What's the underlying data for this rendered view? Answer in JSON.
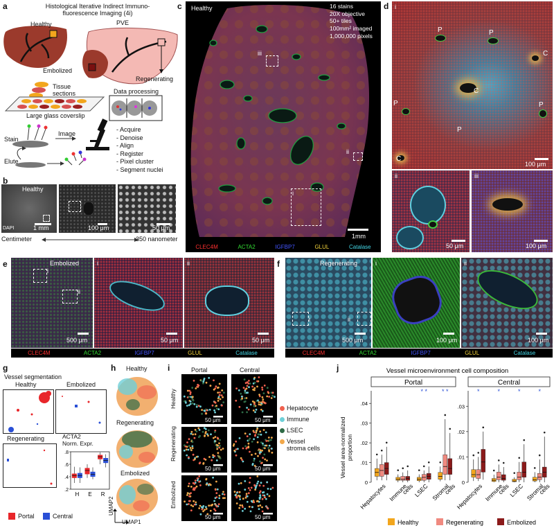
{
  "panels": {
    "a": "a",
    "b": "b",
    "c": "c",
    "d": "d",
    "e": "e",
    "f": "f",
    "g": "g",
    "h": "h",
    "i": "i",
    "j": "j"
  },
  "a": {
    "title_line1": "Histological Iterative Indirect Immuno-",
    "title_line2": "fluorescence Imaging (4i)",
    "healthy": "Healthy",
    "pve": "PVE",
    "embolized": "Embolized",
    "regenerating": "Regenerating",
    "tissue_sections_line1": "Tissue",
    "tissue_sections_line2": "sections",
    "coverslip": "Large glass coverslip",
    "data_processing": "Data processing",
    "stain": "Stain",
    "image": "Image",
    "elute": "Elute",
    "steps": [
      "- Acquire",
      "- Denoise",
      "- Align",
      "- Register",
      "- Pixel cluster",
      "- Segment nuclei"
    ]
  },
  "b": {
    "healthy": "Healthy",
    "dapi": "DAPI",
    "scale1": "1 mm",
    "scale2": "100 μm",
    "scale3": "50 μm",
    "left_end": "Centimeter",
    "right_end": "350 nanometer"
  },
  "c": {
    "healthy": "Healthy",
    "info": [
      "16 stains",
      "20X objective",
      "50+ tiles",
      "100mm² imaged",
      "1,000,000 pixels"
    ],
    "roi_i": "i",
    "roi_ii": "ii",
    "roi_iii": "iii",
    "scale": "1mm"
  },
  "stains": [
    {
      "name": "CLEC4M",
      "color": "#ff3030"
    },
    {
      "name": "ACTA2",
      "color": "#33dd33"
    },
    {
      "name": "IGFBP7",
      "color": "#4455ff"
    },
    {
      "name": "GLUL",
      "color": "#f2d23a"
    },
    {
      "name": "Catalase",
      "color": "#44d8e8"
    }
  ],
  "d": {
    "sub_i": "i",
    "sub_ii": "ii",
    "sub_iii": "iii",
    "markers": [
      "P",
      "P",
      "P",
      "P",
      "P",
      "C",
      "C",
      "C"
    ],
    "scale_i": "100 μm",
    "scale_ii": "50 μm",
    "scale_iii": "100 μm"
  },
  "e": {
    "title": "Embolized",
    "sub_i": "i",
    "sub_ii": "ii",
    "scale_main": "500 μm",
    "scale_i": "50 μm",
    "scale_ii": "50 μm"
  },
  "f": {
    "title": "Regenerating",
    "sub_i": "i",
    "sub_ii": "ii",
    "scale_main": "500 μm",
    "scale_i": "100 μm",
    "scale_ii": "100 μm"
  },
  "g": {
    "title": "Vessel segmentation",
    "healthy": "Healthy",
    "embolized": "Embolized",
    "regenerating": "Regenerating",
    "box_title_line1": "ACTA2",
    "box_title_line2": "Norm. Expr.",
    "yticks": [
      ".2",
      ".4",
      ".6",
      ".8"
    ],
    "xcats": [
      "H",
      "E",
      "R"
    ],
    "legend_portal": "Portal",
    "legend_central": "Central",
    "portal_color": "#e8262a",
    "central_color": "#2a4fd6"
  },
  "h": {
    "healthy": "Healthy",
    "regenerating": "Regenerating",
    "embolized": "Embolized",
    "xaxis": "UMAP1",
    "yaxis": "UMAP2"
  },
  "i": {
    "portal": "Portal",
    "central": "Central",
    "rows": [
      "Healthy",
      "Regenerating",
      "Embolized"
    ],
    "scale": "50 μm",
    "legend": [
      {
        "label": "Hepatocyte",
        "color": "#f0614e"
      },
      {
        "label": "Immune",
        "color": "#6fd0d8"
      },
      {
        "label": "LSEC",
        "color": "#2f6b47"
      },
      {
        "label": "Vessel",
        "color": "#f2a84a"
      },
      {
        "label": "stroma cells",
        "color": "#f2a84a"
      }
    ]
  },
  "chart_data": {
    "type": "box",
    "title": "Vessel microenvironment cell composition",
    "ylabel_line1": "Vessel area-normalized",
    "ylabel_line2": "proportion",
    "categories": [
      "Hepatocytes",
      "Immune cells",
      "LSEC",
      "Stromal cells"
    ],
    "category_lines": [
      [
        "Hepatocytes"
      ],
      [
        "Immune",
        "cells"
      ],
      [
        "LSEC"
      ],
      [
        "Stromal",
        "cells"
      ]
    ],
    "facets": [
      {
        "name": "Portal",
        "ylim": [
          0,
          0.045
        ],
        "yticks": [
          0,
          0.01,
          0.02,
          0.03,
          0.04
        ],
        "yticklabels": [
          "0",
          ".01",
          ".02",
          ".03",
          ".04"
        ],
        "significance": [
          [],
          [],
          [
            "*",
            "*"
          ],
          [
            "*",
            "*"
          ]
        ],
        "series": [
          {
            "name": "Healthy",
            "color": "#f2a61d",
            "boxes": [
              [
                0.001,
                0.003,
                0.005,
                0.007,
                0.012
              ],
              [
                0.0,
                0.001,
                0.0015,
                0.0025,
                0.004
              ],
              [
                0.0,
                0.0008,
                0.0015,
                0.0025,
                0.004
              ],
              [
                0.0005,
                0.0015,
                0.003,
                0.005,
                0.008
              ]
            ]
          },
          {
            "name": "Regenerating",
            "color": "#f08a80",
            "boxes": [
              [
                0.001,
                0.003,
                0.006,
                0.009,
                0.014
              ],
              [
                0.0,
                0.001,
                0.0015,
                0.003,
                0.005
              ],
              [
                0.0,
                0.001,
                0.0025,
                0.004,
                0.006
              ],
              [
                0.001,
                0.004,
                0.008,
                0.014,
                0.032
              ]
            ]
          },
          {
            "name": "Embolized",
            "color": "#8b1a1a",
            "boxes": [
              [
                0.001,
                0.004,
                0.007,
                0.01,
                0.018
              ],
              [
                0.0,
                0.001,
                0.002,
                0.003,
                0.006
              ],
              [
                0.0,
                0.0015,
                0.003,
                0.0045,
                0.008
              ],
              [
                0.001,
                0.004,
                0.007,
                0.012,
                0.025
              ]
            ]
          }
        ]
      },
      {
        "name": "Central",
        "ylim": [
          0,
          0.035
        ],
        "yticks": [
          0,
          0.01,
          0.02,
          0.03
        ],
        "yticklabels": [
          "0",
          ".01",
          ".02",
          ".03"
        ],
        "significance": [
          [
            "*"
          ],
          [
            "*"
          ],
          [
            "*"
          ],
          [
            "*"
          ]
        ],
        "series": [
          {
            "name": "Healthy",
            "color": "#f2a61d",
            "boxes": [
              [
                0.0005,
                0.002,
                0.003,
                0.005,
                0.009
              ],
              [
                0.0,
                0.0003,
                0.0008,
                0.0015,
                0.003
              ],
              [
                0.0,
                0.0002,
                0.0005,
                0.0012,
                0.002
              ],
              [
                0.0,
                0.0005,
                0.001,
                0.002,
                0.004
              ]
            ]
          },
          {
            "name": "Regenerating",
            "color": "#f08a80",
            "boxes": [
              [
                0.0005,
                0.0015,
                0.003,
                0.005,
                0.01
              ],
              [
                0.0,
                0.001,
                0.002,
                0.004,
                0.007
              ],
              [
                0.0,
                0.001,
                0.002,
                0.004,
                0.008
              ],
              [
                0.0,
                0.001,
                0.002,
                0.0035,
                0.009
              ]
            ]
          },
          {
            "name": "Embolized",
            "color": "#8b1a1a",
            "boxes": [
              [
                0.001,
                0.004,
                0.008,
                0.013,
                0.02
              ],
              [
                0.0,
                0.0008,
                0.0015,
                0.003,
                0.006
              ],
              [
                0.0,
                0.002,
                0.004,
                0.008,
                0.015
              ],
              [
                0.0,
                0.002,
                0.004,
                0.006,
                0.018
              ]
            ]
          }
        ]
      }
    ],
    "legend": [
      "Healthy",
      "Regenerating",
      "Embolized"
    ]
  }
}
